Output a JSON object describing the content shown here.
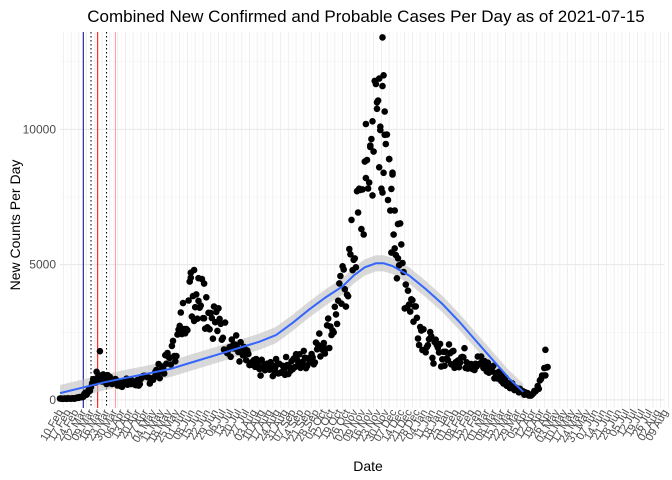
{
  "chart_data": {
    "type": "scatter",
    "title": "Combined New Confirmed and Probable Cases Per Day as of 2021-07-15",
    "xlabel": "Date",
    "ylabel": "New Counts Per Day",
    "xlim": [
      0,
      545
    ],
    "ylim": [
      -300,
      13600
    ],
    "yticks": [
      0,
      5000,
      10000
    ],
    "ytick_labels": [
      "0",
      "5000",
      "10000"
    ],
    "xtick_step_days": 7,
    "xtick_labels": [
      "10 Feb",
      "17 Feb",
      "24 Feb",
      "02 Mar",
      "09 Mar",
      "16 Mar",
      "23 Mar",
      "30 Mar",
      "06 Apr",
      "13 Apr",
      "20 Apr",
      "27 Apr",
      "04 May",
      "11 May",
      "18 May",
      "25 May",
      "01 Jun",
      "08 Jun",
      "15 Jun",
      "22 Jun",
      "29 Jun",
      "06 Jul",
      "13 Jul",
      "20 Jul",
      "27 Jul",
      "03 Aug",
      "10 Aug",
      "17 Aug",
      "24 Aug",
      "31 Aug",
      "07 Sep",
      "14 Sep",
      "21 Sep",
      "28 Sep",
      "05 Oct",
      "12 Oct",
      "19 Oct",
      "26 Oct",
      "02 Nov",
      "09 Nov",
      "16 Nov",
      "23 Nov",
      "30 Nov",
      "07 Dec",
      "14 Dec",
      "21 Dec",
      "28 Dec",
      "04 Jan",
      "11 Jan",
      "18 Jan",
      "25 Jan",
      "01 Feb",
      "08 Feb",
      "15 Feb",
      "22 Feb",
      "01 Mar",
      "08 Mar",
      "15 Mar",
      "22 Mar",
      "29 Mar",
      "05 Apr",
      "12 Apr",
      "19 Apr",
      "26 Apr",
      "03 May",
      "10 May",
      "17 May",
      "24 May",
      "31 May",
      "07 Jun",
      "14 Jun",
      "21 Jun",
      "28 Jun",
      "05 Jul",
      "12 Jul",
      "19 Jul",
      "26 Jul",
      "02 Aug",
      "09 Aug"
    ],
    "anchors": [
      [
        0,
        50
      ],
      [
        12,
        50
      ],
      [
        20,
        120
      ],
      [
        26,
        300
      ],
      [
        30,
        700
      ],
      [
        35,
        900
      ],
      [
        45,
        700
      ],
      [
        55,
        650
      ],
      [
        65,
        600
      ],
      [
        75,
        700
      ],
      [
        85,
        900
      ],
      [
        95,
        1300
      ],
      [
        105,
        2000
      ],
      [
        112,
        3200
      ],
      [
        118,
        3800
      ],
      [
        126,
        4000
      ],
      [
        134,
        3400
      ],
      [
        142,
        2800
      ],
      [
        150,
        2300
      ],
      [
        158,
        2000
      ],
      [
        166,
        1600
      ],
      [
        174,
        1200
      ],
      [
        190,
        1150
      ],
      [
        208,
        1300
      ],
      [
        224,
        1550
      ],
      [
        236,
        2100
      ],
      [
        246,
        2800
      ],
      [
        254,
        3800
      ],
      [
        260,
        4800
      ],
      [
        266,
        5800
      ],
      [
        272,
        7200
      ],
      [
        278,
        8600
      ],
      [
        284,
        10000
      ],
      [
        288,
        11200
      ],
      [
        292,
        9000
      ],
      [
        296,
        7600
      ],
      [
        302,
        6500
      ],
      [
        308,
        4900
      ],
      [
        316,
        3800
      ],
      [
        324,
        2800
      ],
      [
        332,
        2100
      ],
      [
        340,
        1700
      ],
      [
        360,
        1600
      ],
      [
        372,
        1450
      ],
      [
        384,
        1250
      ],
      [
        396,
        900
      ],
      [
        406,
        600
      ],
      [
        414,
        380
      ],
      [
        420,
        220
      ],
      [
        426,
        160
      ],
      [
        432,
        500
      ],
      [
        437,
        1100
      ],
      [
        440,
        1300
      ]
    ],
    "highlight_points": [
      {
        "x": 291,
        "y": 13400
      },
      {
        "x": 292,
        "y": 12000
      },
      {
        "x": 291,
        "y": 11600
      },
      {
        "x": 286,
        "y": 11000
      },
      {
        "x": 282,
        "y": 10300
      },
      {
        "x": 289,
        "y": 10100
      },
      {
        "x": 293,
        "y": 9800
      },
      {
        "x": 280,
        "y": 9400
      },
      {
        "x": 297,
        "y": 8900
      },
      {
        "x": 288,
        "y": 8600
      },
      {
        "x": 300,
        "y": 8400
      },
      {
        "x": 299,
        "y": 7800
      },
      {
        "x": 302,
        "y": 7000
      },
      {
        "x": 276,
        "y": 8200
      },
      {
        "x": 305,
        "y": 6500
      },
      {
        "x": 121,
        "y": 4800
      },
      {
        "x": 118,
        "y": 4700
      },
      {
        "x": 125,
        "y": 4500
      },
      {
        "x": 130,
        "y": 4300
      },
      {
        "x": 36,
        "y": 1800
      },
      {
        "x": 438,
        "y": 1850
      }
    ],
    "smooth_curve": [
      [
        0,
        250
      ],
      [
        20,
        450
      ],
      [
        40,
        650
      ],
      [
        60,
        820
      ],
      [
        80,
        980
      ],
      [
        100,
        1150
      ],
      [
        120,
        1400
      ],
      [
        140,
        1650
      ],
      [
        160,
        1900
      ],
      [
        180,
        2150
      ],
      [
        195,
        2400
      ],
      [
        210,
        2850
      ],
      [
        225,
        3350
      ],
      [
        240,
        3800
      ],
      [
        255,
        4200
      ],
      [
        265,
        4600
      ],
      [
        275,
        4900
      ],
      [
        285,
        5050
      ],
      [
        292,
        5050
      ],
      [
        300,
        4950
      ],
      [
        315,
        4600
      ],
      [
        330,
        4100
      ],
      [
        345,
        3550
      ],
      [
        360,
        2900
      ],
      [
        375,
        2200
      ],
      [
        390,
        1500
      ],
      [
        405,
        800
      ],
      [
        418,
        300
      ]
    ],
    "vertical_lines": [
      {
        "x": 21,
        "color": "#00008b",
        "style": "solid"
      },
      {
        "x": 28,
        "color": "#000000",
        "style": "dotted"
      },
      {
        "x": 34,
        "color": "#ff0000",
        "style": "solid"
      },
      {
        "x": 42,
        "color": "#000000",
        "style": "dotted"
      },
      {
        "x": 50,
        "color": "#ff9999",
        "style": "solid"
      }
    ],
    "grid": true,
    "point_color": "#000000",
    "smooth_color": "#3366ff",
    "band_color": "#bfbfbf"
  }
}
